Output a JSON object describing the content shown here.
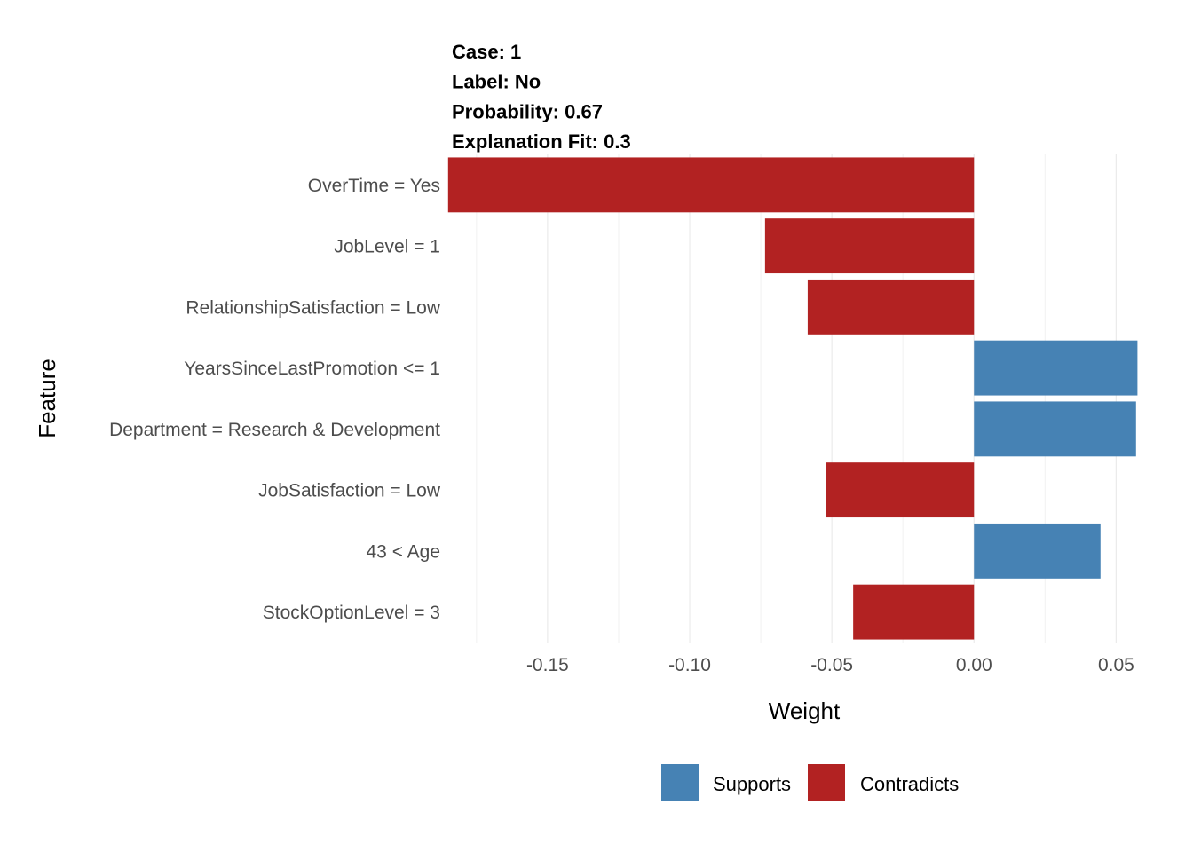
{
  "chart_data": {
    "type": "bar",
    "orientation": "horizontal",
    "title_lines": [
      "Case: 1",
      "Label: No",
      "Probability: 0.67",
      "Explanation Fit: 0.3"
    ],
    "xlabel": "Weight",
    "ylabel": "Feature",
    "xlim": [
      -0.184,
      0.058
    ],
    "x_ticks": [
      -0.15,
      -0.1,
      -0.05,
      0.0,
      0.05
    ],
    "x_tick_labels": [
      "-0.15",
      "-0.10",
      "-0.05",
      "0.00",
      "0.05"
    ],
    "grid": true,
    "legend_position": "bottom",
    "legend": [
      {
        "name": "Supports",
        "color": "#4682B4"
      },
      {
        "name": "Contradicts",
        "color": "#B22222"
      }
    ],
    "features": [
      {
        "label": "OverTime = Yes",
        "weight": -0.185,
        "type": "Contradicts"
      },
      {
        "label": "JobLevel = 1",
        "weight": -0.0735,
        "type": "Contradicts"
      },
      {
        "label": "RelationshipSatisfaction = Low",
        "weight": -0.0585,
        "type": "Contradicts"
      },
      {
        "label": "YearsSinceLastPromotion <= 1",
        "weight": 0.0575,
        "type": "Supports"
      },
      {
        "label": "Department = Research & Development",
        "weight": 0.057,
        "type": "Supports"
      },
      {
        "label": "JobSatisfaction = Low",
        "weight": -0.052,
        "type": "Contradicts"
      },
      {
        "label": "43 < Age",
        "weight": 0.0445,
        "type": "Supports"
      },
      {
        "label": "StockOptionLevel = 3",
        "weight": -0.0425,
        "type": "Contradicts"
      }
    ]
  }
}
